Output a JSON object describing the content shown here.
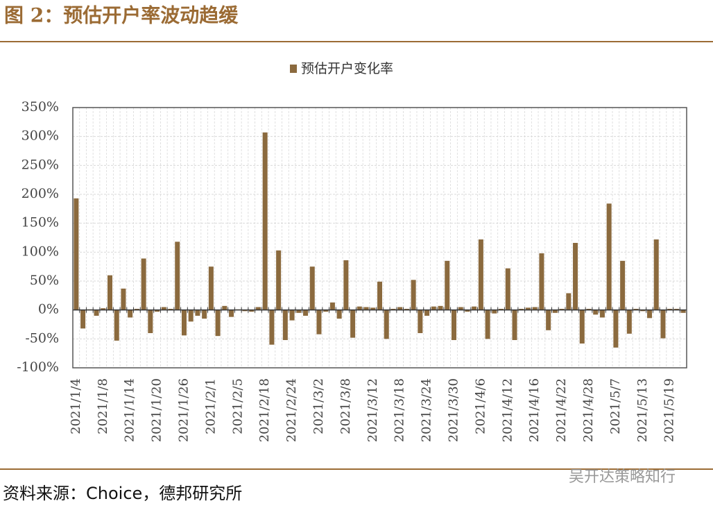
{
  "chart_data": {
    "type": "bar",
    "title": "图 2：预估开户率波动趋缓",
    "source": "资料来源：Choice，德邦研究所",
    "watermark": "吴开达策略知行",
    "categories": [
      "2021/1/4",
      null,
      null,
      null,
      "2021/1/8",
      null,
      null,
      null,
      "2021/1/14",
      null,
      null,
      null,
      "2021/1/20",
      null,
      null,
      null,
      "2021/1/26",
      null,
      null,
      null,
      "2021/2/1",
      null,
      null,
      null,
      "2021/2/5",
      null,
      null,
      null,
      "2021/2/18",
      null,
      null,
      null,
      "2021/2/24",
      null,
      null,
      null,
      "2021/3/2",
      null,
      null,
      null,
      "2021/3/8",
      null,
      null,
      null,
      "2021/3/12",
      null,
      null,
      null,
      "2021/3/18",
      null,
      null,
      null,
      "2021/3/24",
      null,
      null,
      null,
      "2021/3/30",
      null,
      null,
      null,
      "2021/4/6",
      null,
      null,
      null,
      "2021/4/12",
      null,
      null,
      null,
      "2021/4/16",
      null,
      null,
      null,
      "2021/4/22",
      null,
      null,
      null,
      "2021/4/28",
      null,
      null,
      null,
      "2021/5/7",
      null,
      null,
      null,
      "2021/5/13",
      null,
      null,
      null,
      "2021/5/19",
      null,
      null
    ],
    "series": [
      {
        "name": "预估开户变化率",
        "color": "#8b6a3e",
        "values": [
          193,
          -32,
          1,
          -10,
          3,
          60,
          -53,
          37,
          -13,
          2,
          89,
          -40,
          -3,
          5,
          2,
          118,
          -44,
          -20,
          -10,
          -15,
          75,
          -45,
          7,
          -12,
          1,
          -2,
          -3,
          5,
          307,
          -60,
          103,
          -52,
          -18,
          -5,
          -10,
          75,
          -42,
          -3,
          13,
          -15,
          86,
          -48,
          6,
          5,
          4,
          49,
          -50,
          2,
          5,
          2,
          52,
          -40,
          -10,
          6,
          7,
          85,
          -52,
          5,
          -3,
          6,
          122,
          -50,
          -6,
          2,
          72,
          -52,
          2,
          4,
          5,
          98,
          -35,
          -5,
          2,
          29,
          116,
          -58,
          2,
          -8,
          -13,
          184,
          -65,
          85,
          -41,
          2,
          -2,
          -14,
          122,
          -49,
          2,
          2,
          -5
        ]
      }
    ],
    "ylim": [
      -100,
      350
    ],
    "yticks": [
      {
        "value": -100,
        "label": "-100%"
      },
      {
        "value": -50,
        "label": "-50%"
      },
      {
        "value": 0,
        "label": "0%"
      },
      {
        "value": 50,
        "label": "50%"
      },
      {
        "value": 100,
        "label": "100%"
      },
      {
        "value": 150,
        "label": "150%"
      },
      {
        "value": 200,
        "label": "200%"
      },
      {
        "value": 250,
        "label": "250%"
      },
      {
        "value": 300,
        "label": "300%"
      },
      {
        "value": 350,
        "label": "350%"
      }
    ],
    "grid": true,
    "legend": "top"
  }
}
